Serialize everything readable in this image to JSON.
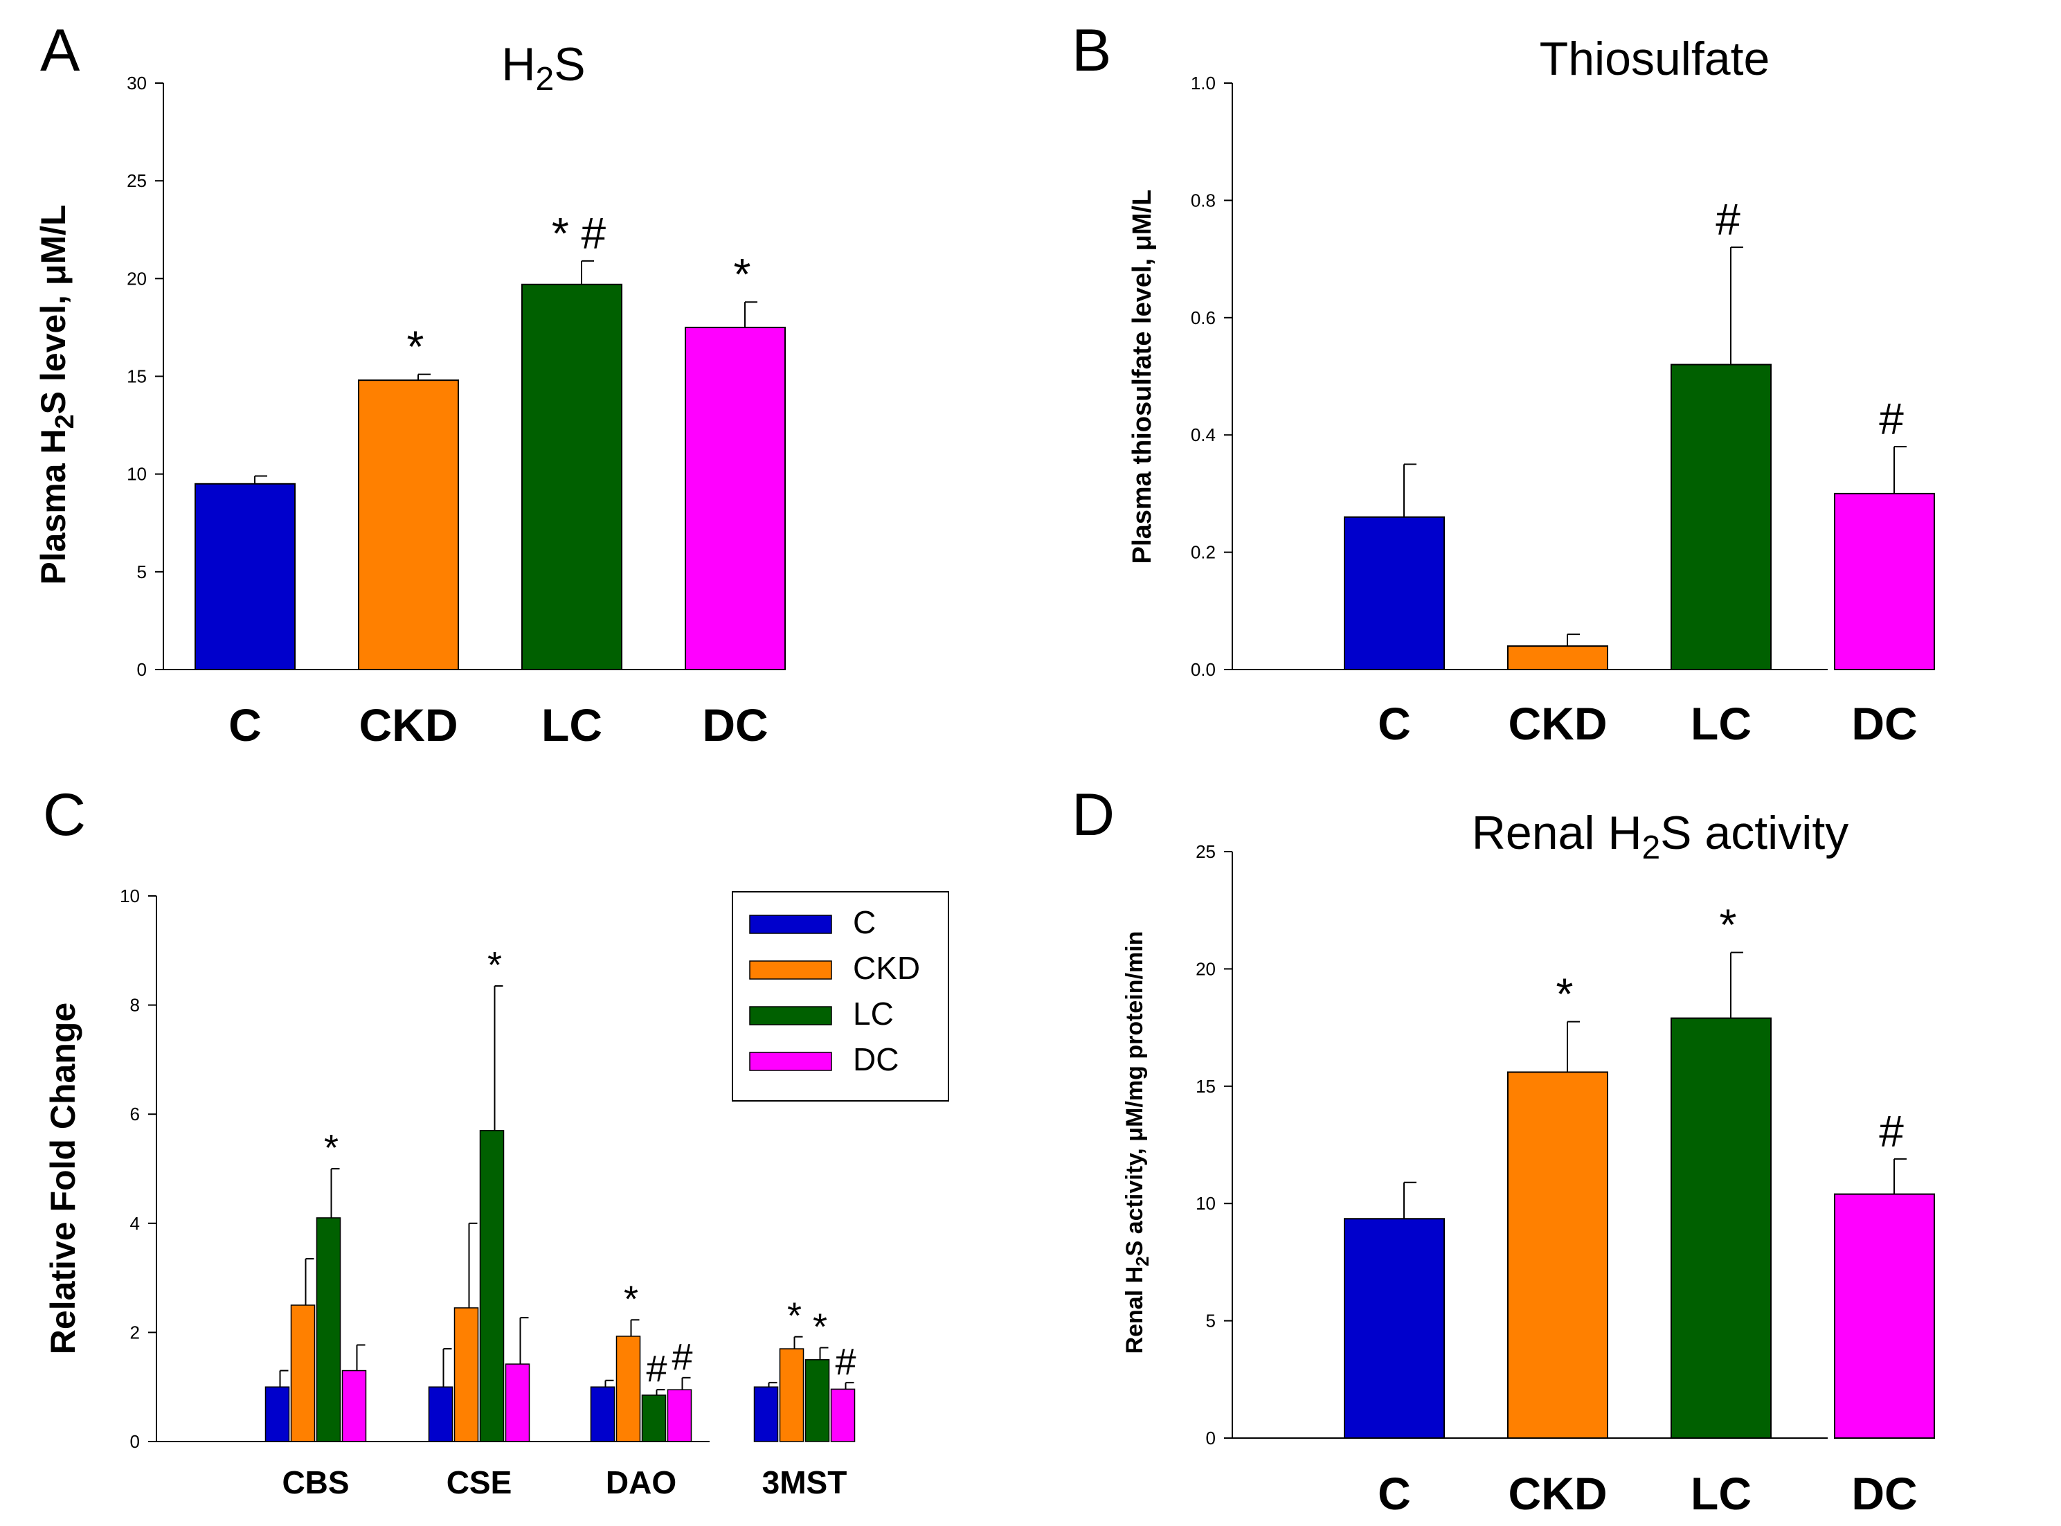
{
  "colors": {
    "C": "#0000cc",
    "CKD": "#ff8000",
    "LC": "#006000",
    "DC": "#ff00ff"
  },
  "chart_data": [
    {
      "panel": "A",
      "type": "bar",
      "title_main": "H",
      "title_sub": "2",
      "title_end": "S",
      "ylabel_main": "Plasma H",
      "ylabel_sub": "2",
      "ylabel_end": "S level, μM/L",
      "ylim": [
        0,
        30
      ],
      "yticks": [
        "0",
        "5",
        "10",
        "15",
        "20",
        "25",
        "30"
      ],
      "categories": [
        "C",
        "CKD",
        "LC",
        "DC"
      ],
      "values": [
        9.5,
        14.8,
        19.7,
        17.5
      ],
      "errors": [
        0.4,
        0.3,
        1.2,
        1.3
      ],
      "annotations": [
        "",
        "*",
        "* #",
        "*"
      ]
    },
    {
      "panel": "B",
      "type": "bar",
      "title": "Thiosulfate",
      "ylabel": "Plasma thiosulfate level, μM/L",
      "ylim": [
        0,
        1.0
      ],
      "yticks": [
        "0.0",
        "0.2",
        "0.4",
        "0.6",
        "0.8",
        "1.0"
      ],
      "categories": [
        "C",
        "CKD",
        "LC",
        "DC"
      ],
      "values": [
        0.26,
        0.04,
        0.52,
        0.3
      ],
      "errors": [
        0.09,
        0.02,
        0.2,
        0.08
      ],
      "annotations": [
        "",
        "",
        "#",
        "#"
      ]
    },
    {
      "panel": "C",
      "type": "bar",
      "ylabel": "Relative Fold Change",
      "ylim": [
        0,
        10
      ],
      "yticks": [
        "0",
        "2",
        "4",
        "6",
        "8",
        "10"
      ],
      "categories": [
        "CBS",
        "CSE",
        "DAO",
        "3MST"
      ],
      "legend": [
        "C",
        "CKD",
        "LC",
        "DC"
      ],
      "series": [
        {
          "name": "C",
          "values": [
            1.0,
            1.0,
            1.0,
            1.0
          ],
          "errors": [
            0.3,
            0.7,
            0.12,
            0.08
          ]
        },
        {
          "name": "CKD",
          "values": [
            2.5,
            2.45,
            1.93,
            1.7
          ],
          "errors": [
            0.85,
            1.55,
            0.3,
            0.22
          ]
        },
        {
          "name": "LC",
          "values": [
            4.1,
            5.7,
            0.85,
            1.5
          ],
          "errors": [
            0.9,
            2.65,
            0.1,
            0.22
          ]
        },
        {
          "name": "DC",
          "values": [
            1.3,
            1.42,
            0.95,
            0.96
          ],
          "errors": [
            0.47,
            0.85,
            0.22,
            0.12
          ]
        }
      ],
      "annotations": [
        {
          "category": "CBS",
          "series": "LC",
          "text": "*"
        },
        {
          "category": "CSE",
          "series": "LC",
          "text": "*"
        },
        {
          "category": "DAO",
          "series": "CKD",
          "text": "*"
        },
        {
          "category": "DAO",
          "series": "LC",
          "text": "#"
        },
        {
          "category": "DAO",
          "series": "DC",
          "text": "#"
        },
        {
          "category": "3MST",
          "series": "CKD",
          "text": "*"
        },
        {
          "category": "3MST",
          "series": "LC",
          "text": "*"
        },
        {
          "category": "3MST",
          "series": "DC",
          "text": "#"
        }
      ]
    },
    {
      "panel": "D",
      "type": "bar",
      "title_main": "Renal H",
      "title_sub": "2",
      "title_end": "S activity",
      "ylabel_main": "Renal H",
      "ylabel_sub": "2",
      "ylabel_end": "S activity, μM/mg protein/min",
      "ylim": [
        0,
        25
      ],
      "yticks": [
        "0",
        "5",
        "10",
        "15",
        "20",
        "25"
      ],
      "categories": [
        "C",
        "CKD",
        "LC",
        "DC"
      ],
      "values": [
        9.35,
        15.6,
        17.9,
        10.4
      ],
      "errors": [
        1.55,
        2.15,
        2.8,
        1.5
      ],
      "annotations": [
        "",
        "*",
        "*",
        "#"
      ]
    }
  ]
}
